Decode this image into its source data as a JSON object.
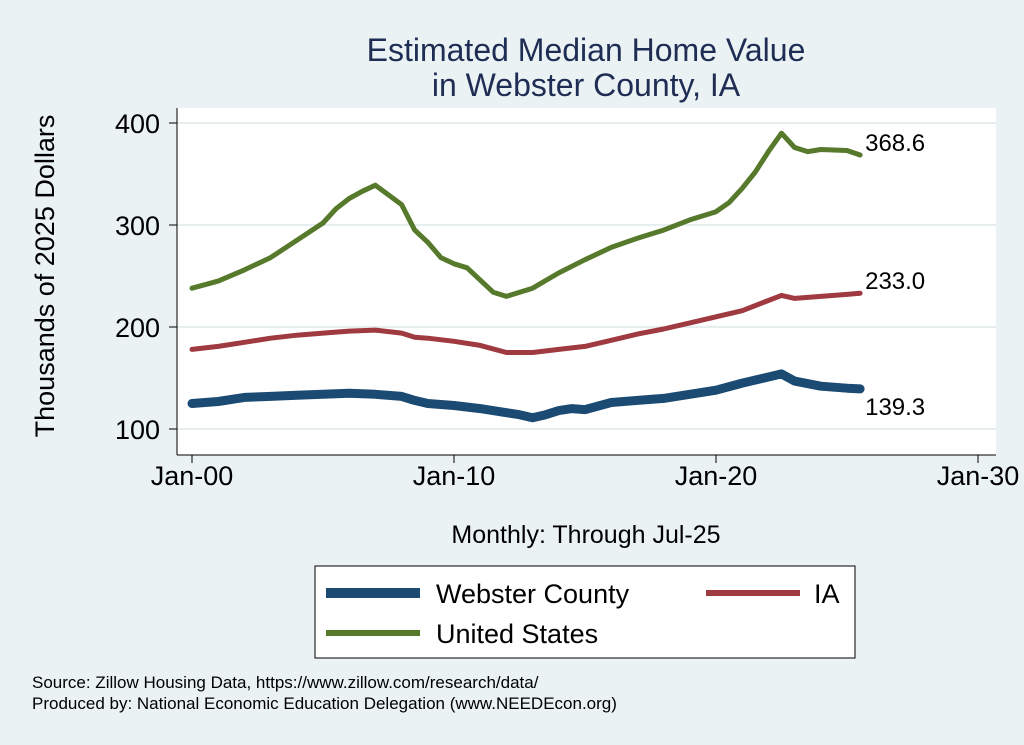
{
  "chart_data": {
    "type": "line",
    "title": [
      "Estimated Median Home Value",
      "in Webster County, IA"
    ],
    "xlabel": "Monthly: Through Jul-25",
    "ylabel": "Thousands of 2025 Dollars",
    "xlim": [
      2000,
      2030
    ],
    "ylim": [
      100,
      400
    ],
    "xticks": [
      {
        "value": 2000,
        "label": "Jan-00"
      },
      {
        "value": 2010,
        "label": "Jan-10"
      },
      {
        "value": 2020,
        "label": "Jan-20"
      },
      {
        "value": 2030,
        "label": "Jan-30"
      }
    ],
    "yticks": [
      100,
      200,
      300,
      400
    ],
    "grid": true,
    "legend_position": "bottom",
    "series": [
      {
        "name": "Webster County",
        "color": "#1b4a72",
        "end_label": "139.3",
        "x": [
          2000.0,
          2001.0,
          2002.0,
          2003.0,
          2004.0,
          2005.0,
          2006.0,
          2007.0,
          2008.0,
          2008.5,
          2009.0,
          2010.0,
          2011.0,
          2012.0,
          2012.5,
          2013.0,
          2013.5,
          2014.0,
          2014.5,
          2015.0,
          2016.0,
          2017.0,
          2018.0,
          2019.0,
          2020.0,
          2021.0,
          2022.0,
          2022.5,
          2023.0,
          2024.0,
          2025.0,
          2025.5
        ],
        "y": [
          125,
          127,
          131,
          132,
          133,
          134,
          135,
          134,
          132,
          128,
          125,
          123,
          120,
          116,
          114,
          111,
          114,
          118,
          120,
          119,
          126,
          128,
          130,
          134,
          138,
          145,
          151,
          154,
          147,
          142,
          140,
          139.3
        ]
      },
      {
        "name": "IA",
        "color": "#9e3a40",
        "end_label": "233.0",
        "x": [
          2000.0,
          2001.0,
          2002.0,
          2003.0,
          2004.0,
          2005.0,
          2006.0,
          2007.0,
          2008.0,
          2008.5,
          2009.0,
          2010.0,
          2011.0,
          2012.0,
          2013.0,
          2014.0,
          2015.0,
          2016.0,
          2017.0,
          2018.0,
          2019.0,
          2020.0,
          2021.0,
          2022.0,
          2022.5,
          2023.0,
          2024.0,
          2025.0,
          2025.5
        ],
        "y": [
          178,
          181,
          185,
          189,
          192,
          194,
          196,
          197,
          194,
          190,
          189,
          186,
          182,
          175,
          175,
          178,
          181,
          187,
          193,
          198,
          204,
          210,
          216,
          226,
          231,
          228,
          230,
          232,
          233.0
        ]
      },
      {
        "name": "United States",
        "color": "#56792b",
        "end_label": "368.6",
        "x": [
          2000.0,
          2001.0,
          2002.0,
          2003.0,
          2004.0,
          2005.0,
          2005.5,
          2006.0,
          2006.5,
          2007.0,
          2008.0,
          2008.5,
          2009.0,
          2009.5,
          2010.0,
          2010.5,
          2011.0,
          2011.5,
          2012.0,
          2013.0,
          2014.0,
          2015.0,
          2016.0,
          2017.0,
          2018.0,
          2019.0,
          2020.0,
          2020.5,
          2021.0,
          2021.5,
          2022.0,
          2022.5,
          2023.0,
          2023.5,
          2024.0,
          2025.0,
          2025.5
        ],
        "y": [
          238,
          245,
          256,
          268,
          285,
          302,
          316,
          326,
          333,
          339,
          320,
          295,
          283,
          268,
          262,
          258,
          246,
          234,
          230,
          238,
          253,
          266,
          278,
          287,
          295,
          305,
          313,
          322,
          336,
          352,
          372,
          390,
          376,
          372,
          374,
          373,
          368.6
        ]
      }
    ]
  },
  "source_lines": [
    "Source: Zillow Housing Data, https://www.zillow.com/research/data/",
    "Produced by: National Economic Education Delegation (www.NEEDEcon.org)"
  ]
}
